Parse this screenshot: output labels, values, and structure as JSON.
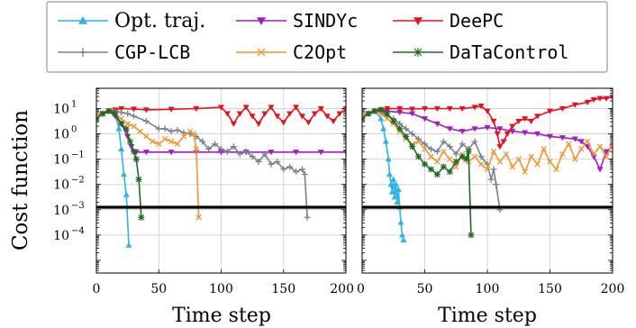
{
  "chart_data": {
    "type": "line",
    "ylabel": "Cost function",
    "xlabel": "Time step",
    "xlim": [
      0,
      200
    ],
    "ylog": true,
    "ylim_exp": [
      -5.5,
      1.8
    ],
    "x_ticks": [
      "0",
      "50",
      "100",
      "150",
      "200"
    ],
    "y_ticks": [
      {
        "base": "10",
        "exp": "1",
        "value": 1
      },
      {
        "base": "10",
        "exp": "0",
        "value": 0
      },
      {
        "base": "10",
        "exp": "−1",
        "value": -1
      },
      {
        "base": "10",
        "exp": "−2",
        "value": -2
      },
      {
        "base": "10",
        "exp": "−3",
        "value": -3
      },
      {
        "base": "10",
        "exp": "−4",
        "value": -4
      }
    ],
    "threshold_log10": -2.9,
    "grid": true,
    "legend_position": "top",
    "legend": [
      {
        "name": "Opt. traj.",
        "color": "#2bb4e8",
        "marker": "triangle-up",
        "font": "serif"
      },
      {
        "name": "SINDYc",
        "color": "#a31ac6",
        "marker": "triangle-down",
        "font": "mono"
      },
      {
        "name": "DeePC",
        "color": "#e8101c",
        "marker": "triangle-down",
        "font": "mono"
      },
      {
        "name": "CGP-LCB",
        "color": "#76808f",
        "marker": "plus",
        "font": "mono"
      },
      {
        "name": "C2Opt",
        "color": "#f5962a",
        "marker": "x",
        "font": "mono"
      },
      {
        "name": "DaTaControl",
        "color": "#1e6b24",
        "marker": "star",
        "font": "mono"
      }
    ],
    "panels": [
      {
        "series": [
          {
            "name": "Opt. traj.",
            "x": [
              0,
              5,
              10,
              15,
              18,
              20,
              22,
              24,
              26
            ],
            "y": [
              0.6,
              0.8,
              0.9,
              0.8,
              0.2,
              -0.6,
              -1.6,
              -2.4,
              -4.4
            ]
          },
          {
            "name": "SINDYc",
            "x": [
              0,
              5,
              10,
              15,
              20,
              25,
              28,
              30,
              32,
              40,
              60,
              80,
              100,
              120,
              140,
              160,
              180,
              200
            ],
            "y": [
              0.7,
              0.8,
              0.9,
              0.7,
              0.4,
              -0.1,
              -0.5,
              -0.7,
              -0.72,
              -0.72,
              -0.72,
              -0.72,
              -0.72,
              -0.72,
              -0.72,
              -0.72,
              -0.72,
              -0.72
            ]
          },
          {
            "name": "DeePC",
            "x": [
              0,
              5,
              10,
              15,
              20,
              30,
              40,
              60,
              80,
              100,
              105,
              110,
              115,
              120,
              125,
              130,
              135,
              140,
              145,
              150,
              155,
              160,
              165,
              170,
              175,
              180,
              185,
              190,
              195,
              200
            ],
            "y": [
              0.6,
              0.8,
              0.9,
              0.95,
              1.0,
              0.98,
              0.95,
              0.97,
              1.0,
              1.05,
              0.8,
              0.4,
              0.8,
              1.05,
              0.7,
              0.4,
              0.8,
              1.05,
              0.7,
              0.45,
              0.8,
              1.05,
              0.7,
              0.45,
              0.8,
              1.0,
              0.7,
              0.5,
              0.8,
              1.0
            ]
          },
          {
            "name": "CGP-LCB",
            "x": [
              0,
              5,
              10,
              15,
              20,
              25,
              30,
              40,
              50,
              55,
              60,
              65,
              70,
              75,
              80,
              85,
              90,
              95,
              100,
              105,
              110,
              115,
              120,
              125,
              130,
              135,
              140,
              145,
              150,
              155,
              160,
              165,
              167,
              169
            ],
            "y": [
              0.6,
              0.8,
              0.9,
              0.9,
              0.85,
              0.8,
              0.7,
              0.5,
              0.2,
              0.2,
              0.1,
              0.15,
              0.05,
              0.0,
              -0.1,
              -0.3,
              -0.6,
              -0.4,
              -0.6,
              -0.7,
              -0.5,
              -0.8,
              -0.7,
              -0.9,
              -1.1,
              -0.8,
              -1.2,
              -1.1,
              -1.4,
              -1.3,
              -1.5,
              -1.4,
              -1.6,
              -3.3
            ]
          },
          {
            "name": "C2Opt",
            "x": [
              0,
              5,
              10,
              15,
              20,
              25,
              30,
              35,
              40,
              45,
              50,
              55,
              60,
              65,
              70,
              75,
              78,
              80,
              82
            ],
            "y": [
              0.7,
              0.8,
              0.9,
              0.8,
              0.6,
              0.4,
              0.3,
              0.1,
              -0.1,
              -0.3,
              -0.4,
              -0.2,
              -0.3,
              -0.4,
              -0.1,
              0.1,
              0.0,
              -0.6,
              -3.3
            ]
          },
          {
            "name": "DaTaControl",
            "x": [
              0,
              5,
              10,
              15,
              20,
              24,
              27,
              30,
              32,
              34,
              36
            ],
            "y": [
              0.6,
              0.8,
              0.9,
              0.8,
              0.4,
              0.2,
              -0.3,
              -0.7,
              -1.0,
              -1.8,
              -3.3
            ]
          }
        ]
      },
      {
        "series": [
          {
            "name": "Opt. traj.",
            "x": [
              0,
              5,
              10,
              15,
              17,
              19,
              21,
              22,
              23,
              24,
              25,
              26,
              27,
              28,
              29,
              30,
              31,
              32,
              33
            ],
            "y": [
              0.6,
              0.8,
              0.9,
              0.6,
              0.2,
              -0.3,
              -1.0,
              -1.6,
              -2.0,
              -2.3,
              -1.8,
              -2.5,
              -2.0,
              -2.7,
              -2.2,
              -2.9,
              -3.5,
              -4.0,
              -4.2
            ]
          },
          {
            "name": "SINDYc",
            "x": [
              0,
              5,
              10,
              15,
              20,
              30,
              40,
              50,
              60,
              70,
              80,
              90,
              100,
              110,
              120,
              130,
              140,
              150,
              160,
              170,
              175,
              180,
              185,
              190,
              195,
              200
            ],
            "y": [
              0.7,
              0.8,
              0.9,
              0.9,
              0.9,
              0.85,
              0.8,
              0.6,
              0.4,
              0.2,
              0.1,
              0.2,
              0.25,
              0.2,
              0.1,
              0.05,
              0.0,
              -0.1,
              -0.15,
              -0.2,
              -0.3,
              -0.5,
              -0.9,
              -1.4,
              -0.7,
              -0.5
            ]
          },
          {
            "name": "DeePC",
            "x": [
              0,
              5,
              10,
              15,
              20,
              30,
              40,
              50,
              60,
              70,
              80,
              90,
              95,
              100,
              105,
              108,
              110,
              113,
              116,
              120,
              125,
              130,
              135,
              140,
              150,
              160,
              170,
              180,
              185,
              190,
              195,
              200
            ],
            "y": [
              0.6,
              0.8,
              0.9,
              0.95,
              1.0,
              1.0,
              0.98,
              1.0,
              1.0,
              1.0,
              1.0,
              1.05,
              1.1,
              0.9,
              0.5,
              0.0,
              -0.5,
              -0.3,
              0.0,
              0.3,
              0.5,
              0.6,
              0.5,
              0.7,
              0.9,
              1.0,
              1.15,
              1.25,
              1.35,
              1.4,
              1.4,
              1.45
            ]
          },
          {
            "name": "CGP-LCB",
            "x": [
              0,
              5,
              10,
              15,
              20,
              25,
              30,
              35,
              40,
              45,
              50,
              55,
              60,
              65,
              70,
              75,
              80,
              85,
              90,
              95,
              100,
              103,
              105,
              107,
              110
            ],
            "y": [
              0.6,
              0.8,
              0.9,
              0.85,
              0.7,
              0.6,
              0.4,
              0.2,
              0.0,
              -0.2,
              -0.4,
              -0.6,
              -0.7,
              -0.3,
              -0.5,
              -0.8,
              -0.4,
              -0.6,
              -0.3,
              -0.9,
              -1.2,
              -1.8,
              -1.4,
              -2.0,
              -3.0
            ]
          },
          {
            "name": "C2Opt",
            "x": [
              0,
              5,
              10,
              15,
              20,
              25,
              30,
              35,
              40,
              45,
              50,
              55,
              60,
              65,
              70,
              75,
              80,
              85,
              90,
              95,
              100,
              105,
              110,
              115,
              120,
              125,
              130,
              135,
              140,
              145,
              150,
              155,
              160,
              165,
              170,
              175,
              180,
              185,
              190,
              195,
              200
            ],
            "y": [
              0.7,
              0.8,
              0.9,
              0.8,
              0.6,
              0.4,
              0.1,
              -0.2,
              -0.4,
              -0.3,
              -0.6,
              -0.9,
              -1.1,
              -0.7,
              -1.0,
              -1.3,
              -0.8,
              -1.1,
              -0.9,
              -1.2,
              -1.4,
              -0.7,
              -1.1,
              -0.8,
              -1.3,
              -1.0,
              -1.5,
              -0.9,
              -1.2,
              -0.6,
              -1.1,
              -1.4,
              -0.8,
              -0.4,
              -1.0,
              -0.6,
              -0.3,
              -0.8,
              -0.5,
              -0.9,
              -0.4
            ]
          },
          {
            "name": "DaTaControl",
            "x": [
              0,
              5,
              10,
              15,
              20,
              25,
              30,
              35,
              40,
              45,
              50,
              55,
              60,
              65,
              70,
              75,
              80,
              83,
              85,
              87
            ],
            "y": [
              0.6,
              0.8,
              0.9,
              0.95,
              0.8,
              0.5,
              0.2,
              -0.1,
              -0.5,
              -0.9,
              -1.2,
              -1.4,
              -1.6,
              -1.3,
              -1.5,
              -1.1,
              -0.9,
              -1.0,
              -0.7,
              -4.0
            ]
          }
        ]
      }
    ]
  }
}
